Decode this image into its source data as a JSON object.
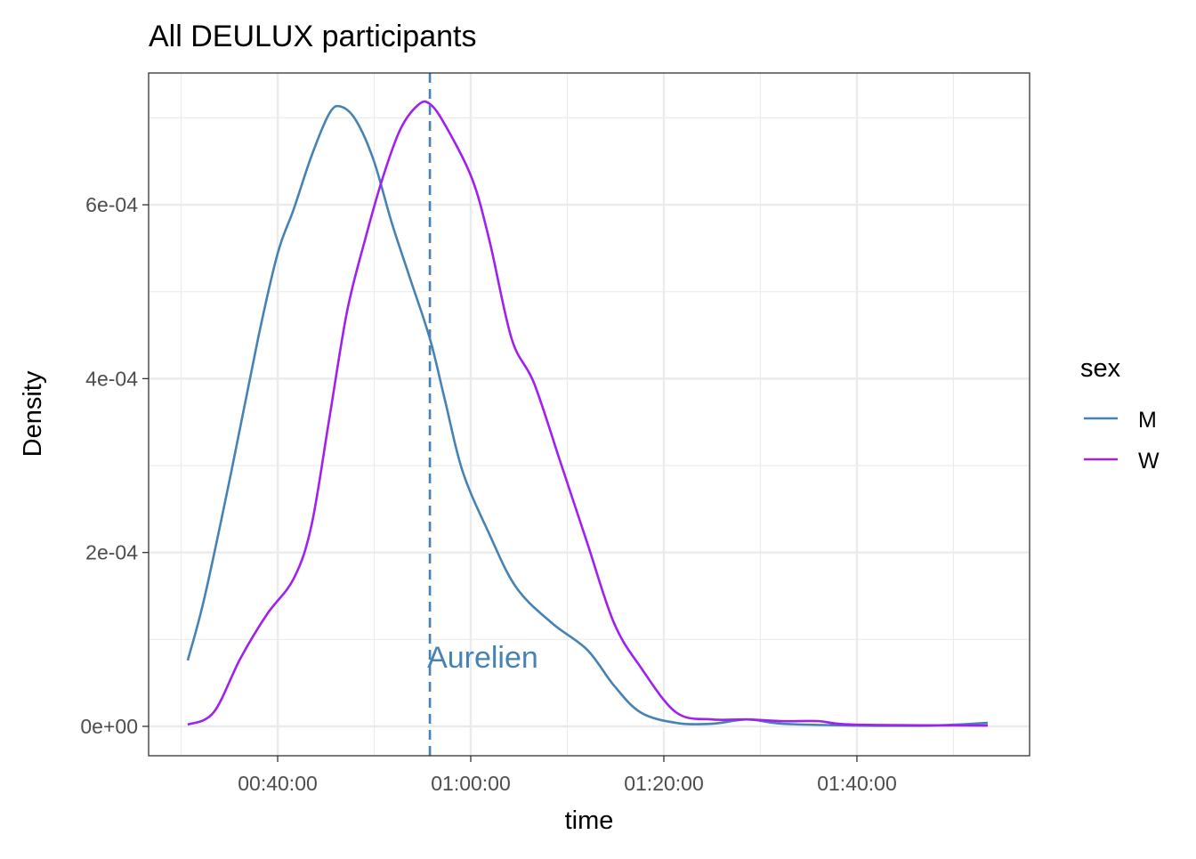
{
  "chart_data": {
    "type": "line",
    "title": "All DEULUX participants",
    "xlabel": "time",
    "ylabel": "Density",
    "xlim": [
      "00:26:38",
      "01:57:53"
    ],
    "ylim": [
      -3.38e-05,
      0.0007516
    ],
    "x_ticks": [
      "00:40:00",
      "01:00:00",
      "01:20:00",
      "01:40:00"
    ],
    "y_ticks": [
      {
        "value": 0,
        "label": "0e+00"
      },
      {
        "value": 0.0002,
        "label": "2e-04"
      },
      {
        "value": 0.0004,
        "label": "4e-04"
      },
      {
        "value": 0.0006,
        "label": "6e-04"
      }
    ],
    "grid": true,
    "legend": {
      "title": "sex",
      "position": "right"
    },
    "series": [
      {
        "name": "M",
        "color": "#4682B4",
        "points": [
          [
            "00:30:41",
            7.58e-05
          ],
          [
            "00:32:27",
            0.0001495
          ],
          [
            "00:35:12",
            0.000293
          ],
          [
            "00:37:58",
            0.000446
          ],
          [
            "00:40:00",
            0.000544
          ],
          [
            "00:41:40",
            0.000595
          ],
          [
            "00:43:30",
            0.000656
          ],
          [
            "00:45:21",
            0.000705
          ],
          [
            "00:46:33",
            0.000713
          ],
          [
            "00:48:07",
            0.000697
          ],
          [
            "00:49:57",
            0.000651
          ],
          [
            "00:51:48",
            0.00058
          ],
          [
            "00:53:38",
            0.000518
          ],
          [
            "00:55:46",
            0.000446
          ],
          [
            "00:57:20",
            0.000375
          ],
          [
            "00:59:10",
            0.000293
          ],
          [
            "01:01:56",
            0.000221
          ],
          [
            "01:04:42",
            0.00016
          ],
          [
            "01:08:23",
            0.000119
          ],
          [
            "01:12:04",
            8.8e-05
          ],
          [
            "01:14:50",
            4.7e-05
          ],
          [
            "01:17:36",
            1.6e-05
          ],
          [
            "01:21:17",
            4e-06
          ],
          [
            "01:24:59",
            3e-06
          ],
          [
            "01:28:40",
            8e-06
          ],
          [
            "01:32:21",
            3e-06
          ],
          [
            "01:39:43",
            1e-06
          ],
          [
            "01:48:01",
            1e-06
          ],
          [
            "01:53:33",
            4e-06
          ]
        ]
      },
      {
        "name": "W",
        "color": "#A020F0",
        "points": [
          [
            "00:30:41",
            2e-06
          ],
          [
            "00:33:22",
            1.6e-05
          ],
          [
            "00:36:08",
            7.8e-05
          ],
          [
            "00:38:54",
            0.000129
          ],
          [
            "00:41:40",
            0.00017
          ],
          [
            "00:43:30",
            0.000231
          ],
          [
            "00:45:21",
            0.000354
          ],
          [
            "00:47:11",
            0.000477
          ],
          [
            "00:49:02",
            0.000559
          ],
          [
            "00:50:53",
            0.000631
          ],
          [
            "00:52:43",
            0.000687
          ],
          [
            "00:54:34",
            0.000715
          ],
          [
            "00:55:46",
            0.000716
          ],
          [
            "00:57:20",
            0.000692
          ],
          [
            "01:00:06",
            0.000631
          ],
          [
            "01:01:56",
            0.000559
          ],
          [
            "01:04:14",
            0.000446
          ],
          [
            "01:06:33",
            0.000395
          ],
          [
            "01:09:19",
            0.000303
          ],
          [
            "01:12:04",
            0.000211
          ],
          [
            "01:14:50",
            0.000119
          ],
          [
            "01:17:36",
            6.8e-05
          ],
          [
            "01:21:17",
            1.6e-05
          ],
          [
            "01:24:59",
            8e-06
          ],
          [
            "01:28:40",
            8e-06
          ],
          [
            "01:32:21",
            6e-06
          ],
          [
            "01:36:02",
            6e-06
          ],
          [
            "01:39:43",
            2e-06
          ],
          [
            "01:53:33",
            1e-06
          ]
        ]
      }
    ],
    "annotations": [
      {
        "type": "vline",
        "x": "00:55:46",
        "color": "#4682B4",
        "style": "dashed"
      },
      {
        "type": "text",
        "text": "Aurelien",
        "x": "00:55:46",
        "y": 8e-05,
        "color": "#4682B4"
      }
    ]
  }
}
